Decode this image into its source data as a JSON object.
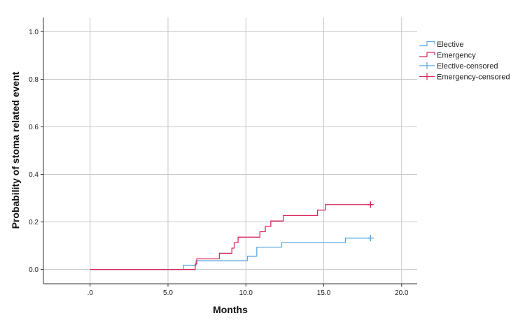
{
  "chart_data": {
    "type": "line",
    "step": true,
    "xlabel": "Months",
    "ylabel": "Probability of stoma related event",
    "xlim": [
      -3,
      21
    ],
    "ylim": [
      -0.06,
      1.06
    ],
    "x_ticks": [
      0,
      5,
      10,
      15,
      20
    ],
    "x_tick_labels": [
      ".0",
      "5.0",
      "10.0",
      "15.0",
      "20.0"
    ],
    "y_ticks": [
      0,
      0.2,
      0.4,
      0.6,
      0.8,
      1.0
    ],
    "y_tick_labels": [
      "0.0",
      "0.2",
      "0.4",
      "0.6",
      "0.8",
      "1.0"
    ],
    "grid": true,
    "legend_position": "right",
    "series": [
      {
        "name": "Elective",
        "color": "#5ea7e0",
        "x": [
          0,
          6.0,
          6.8,
          10.1,
          10.7,
          12.3,
          16.4,
          18.0
        ],
        "y": [
          0,
          0.018,
          0.037,
          0.056,
          0.094,
          0.113,
          0.132,
          0.132
        ]
      },
      {
        "name": "Emergency",
        "color": "#d62b5e",
        "x": [
          0,
          6.75,
          6.85,
          8.3,
          9.1,
          9.25,
          9.5,
          10.9,
          11.25,
          11.6,
          12.4,
          14.6,
          15.1,
          18.0
        ],
        "y": [
          0,
          0.023,
          0.045,
          0.068,
          0.09,
          0.113,
          0.136,
          0.159,
          0.181,
          0.204,
          0.227,
          0.25,
          0.273,
          0.273
        ]
      }
    ],
    "censored": [
      {
        "name": "Elective-censored",
        "color": "#5ea7e0",
        "x": [
          18.0
        ],
        "y": [
          0.132
        ]
      },
      {
        "name": "Emergency-censored",
        "color": "#d62b5e",
        "x": [
          18.0
        ],
        "y": [
          0.273
        ]
      }
    ]
  }
}
